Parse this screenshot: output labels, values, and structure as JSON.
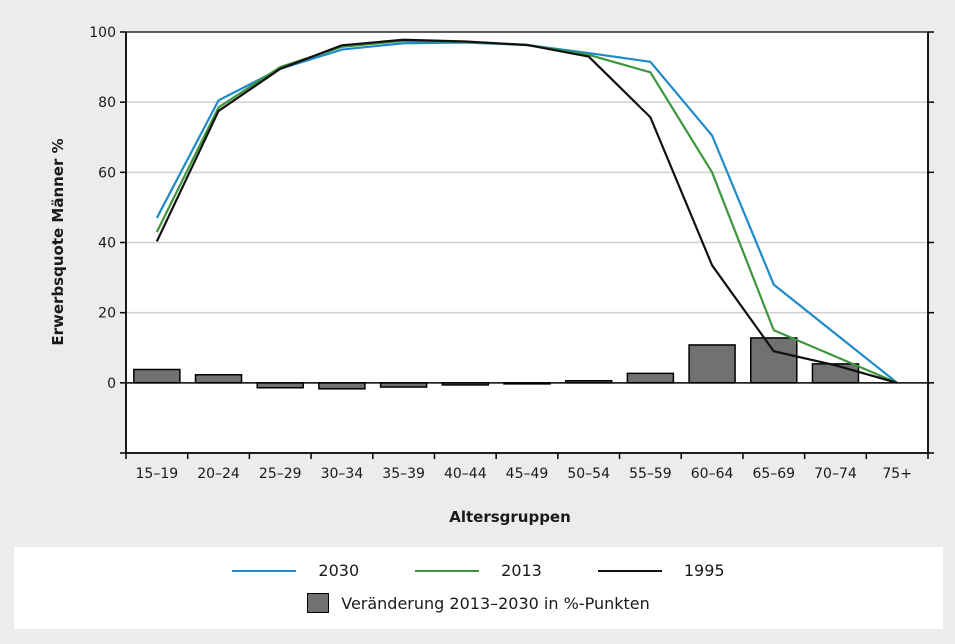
{
  "chart_data": {
    "type": "line",
    "title": "",
    "xlabel": "Altersgruppen",
    "ylabel": "Erwerbsquote Männer %",
    "ylim": [
      -20,
      100
    ],
    "yticks": [
      100,
      80,
      60,
      40,
      20,
      0,
      -20
    ],
    "ytick_labels": [
      "100",
      "80",
      "60",
      "40",
      "20",
      "0",
      ""
    ],
    "categories": [
      "15–19",
      "20–24",
      "25–29",
      "30–34",
      "35–39",
      "40–44",
      "45–49",
      "50–54",
      "55–59",
      "60–64",
      "65–69",
      "70–74",
      "75+"
    ],
    "grid": "horizontal",
    "legend_position": "bottom",
    "series": [
      {
        "name": "2030",
        "type": "line",
        "color": "#1f8ac9",
        "values": [
          47,
          80.5,
          89.5,
          95,
          96.8,
          97,
          96.3,
          94,
          91.5,
          70.5,
          28,
          14,
          0
        ]
      },
      {
        "name": "2013",
        "type": "line",
        "color": "#3c963b",
        "values": [
          43,
          78.5,
          90,
          95.8,
          97.5,
          97.2,
          96.3,
          93.5,
          88.5,
          60,
          15,
          7.5,
          0
        ]
      },
      {
        "name": "1995",
        "type": "line",
        "color": "#111111",
        "values": [
          40.3,
          77.5,
          89.5,
          96.2,
          97.8,
          97.3,
          96.3,
          93,
          75.7,
          33.5,
          9,
          5,
          0
        ]
      },
      {
        "name": "Veränderung 2013–2030 in %-Punkten",
        "type": "bar",
        "color": "#717171",
        "values": [
          3.8,
          2.3,
          -1.4,
          -1.7,
          -1.2,
          -0.6,
          -0.3,
          0.6,
          2.7,
          10.8,
          12.8,
          5.4,
          null
        ]
      }
    ]
  },
  "legend": {
    "l2030": "2030",
    "l2013": "2013",
    "l1995": "1995",
    "bars": "Veränderung 2013–2030 in %-Punkten"
  }
}
